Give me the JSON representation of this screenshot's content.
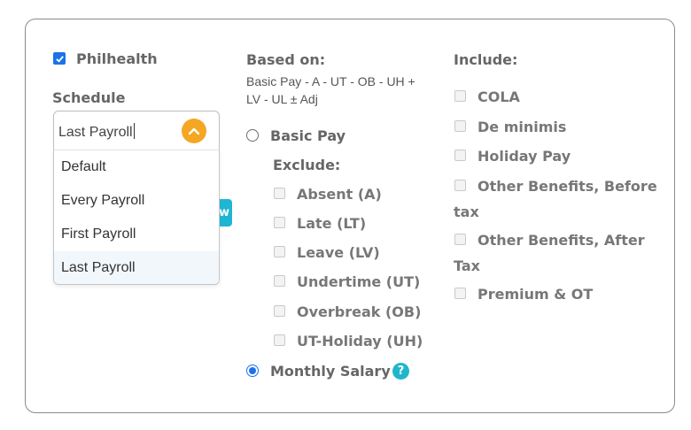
{
  "philhealth": {
    "label": "Philhealth",
    "checked": true
  },
  "schedule": {
    "label": "Schedule",
    "value": "Last Payroll",
    "options": [
      "Default",
      "Every Payroll",
      "First Payroll",
      "Last Payroll"
    ],
    "selected_index": 3
  },
  "hidden_button_fragment": "w",
  "based_on": {
    "label": "Based on:",
    "formula_line1": "Basic Pay - A - UT - OB - UH +",
    "formula_line2": "LV - UL ± Adj",
    "basic_pay_label": "Basic Pay",
    "exclude_label": "Exclude:",
    "exclude_items": [
      "Absent (A)",
      "Late (LT)",
      "Leave (LV)",
      "Undertime (UT)",
      "Overbreak (OB)",
      "UT-Holiday (UH)"
    ],
    "monthly_salary_label": "Monthly Salary",
    "selected": "monthly_salary"
  },
  "include": {
    "label": "Include:",
    "items": [
      "COLA",
      "De minimis",
      "Holiday Pay",
      "Other Benefits, Before",
      "tax",
      "Other Benefits, After",
      "Tax",
      "Premium & OT"
    ]
  },
  "colors": {
    "accent": "#1a73e8",
    "orange": "#f5a623",
    "teal": "#1fb6c9"
  },
  "icons": {
    "dropdown_toggle": "chevron-up-icon",
    "help": "question-mark-icon"
  }
}
